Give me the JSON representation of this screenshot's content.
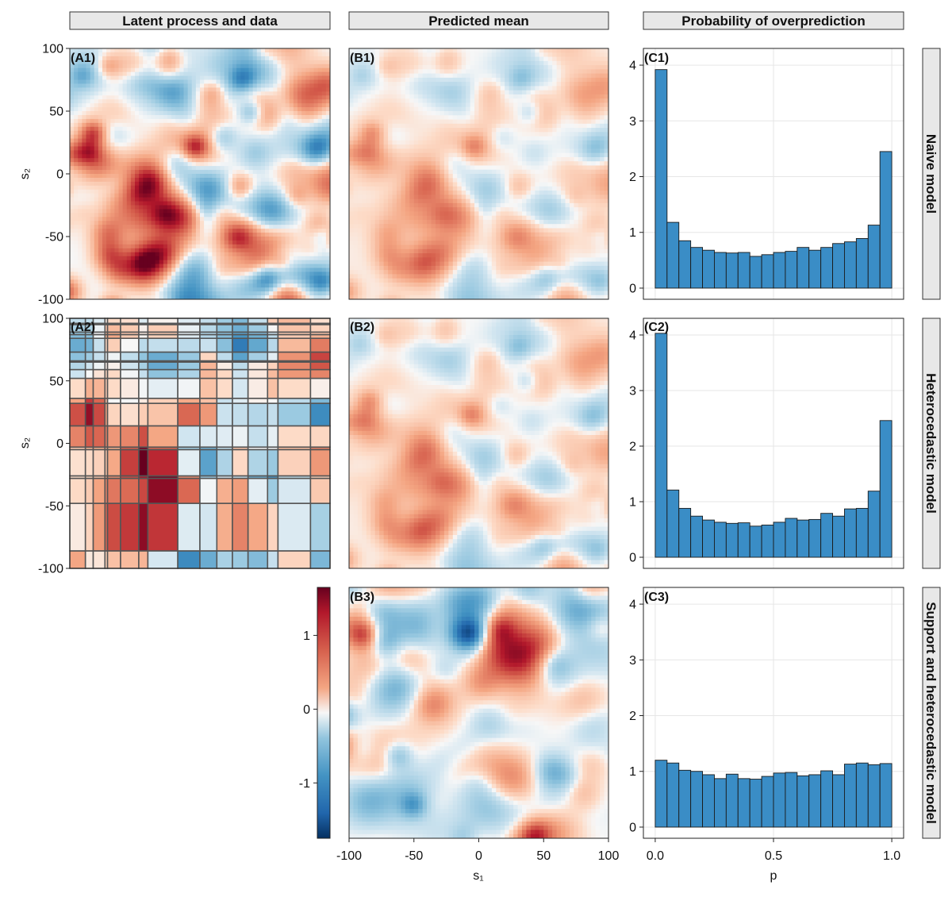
{
  "columns": [
    {
      "key": "A",
      "title": "Latent process and data"
    },
    {
      "key": "B",
      "title": "Predicted mean"
    },
    {
      "key": "C",
      "title": "Probability of overprediction"
    }
  ],
  "rows": [
    {
      "key": "1",
      "title": "Naive model"
    },
    {
      "key": "2",
      "title": "Heterocedastic model"
    },
    {
      "key": "3",
      "title": "Support and heterocedastic model"
    }
  ],
  "panel_labels": [
    "(A1)",
    "(B1)",
    "(C1)",
    "(A2)",
    "(B2)",
    "(C2)",
    "(B3)",
    "(C3)"
  ],
  "axes": {
    "s1_label": "s₁",
    "s2_label": "s₂",
    "p_label": "p",
    "s_ticks": [
      "-100",
      "-50",
      "0",
      "50",
      "100"
    ],
    "s_tick_values": [
      -100,
      -50,
      0,
      50,
      100
    ],
    "hist_y_ticks": [
      "0",
      "1",
      "2",
      "3",
      "4"
    ],
    "hist_x_ticks": [
      "0.0",
      "0.5",
      "1.0"
    ],
    "colorbar_ticks": [
      "1",
      "0",
      "-1"
    ]
  },
  "colors": {
    "bar_fill": "#3a8dc6",
    "bar_stroke": "#1a1a1a",
    "cmap_low": "#053061",
    "cmap_mid": "#f7f7f7",
    "cmap_high": "#67001f",
    "strip_fill": "#e8e8e8"
  },
  "chart_data": [
    {
      "type": "heatmap",
      "id": "A1",
      "title": "Latent process and data",
      "xlim": [
        -100,
        100
      ],
      "ylim": [
        -100,
        100
      ],
      "ylabel": "s₂",
      "description_values": "smooth random field, range approx -1.7 to 1.6"
    },
    {
      "type": "heatmap",
      "id": "A2",
      "xlim": [
        -100,
        100
      ],
      "ylim": [
        -100,
        100
      ],
      "ylabel": "s₂",
      "x_breaks": [
        -100,
        -88,
        -82,
        -73,
        -71,
        -61,
        -47,
        -40,
        -17,
        0,
        13,
        25,
        37,
        52,
        60,
        85,
        100
      ],
      "y_breaks": [
        -100,
        -86,
        -48,
        -28,
        -26,
        -5,
        -3,
        14,
        32,
        36,
        52,
        59,
        65,
        66,
        73,
        84,
        87,
        89,
        95,
        96,
        100
      ],
      "description_values": "areal (block-averaged) data on irregular rectangular support"
    },
    {
      "type": "heatmap",
      "id": "B1",
      "title": "Predicted mean",
      "xlim": [
        -100,
        100
      ],
      "ylim": [
        -100,
        100
      ]
    },
    {
      "type": "heatmap",
      "id": "B2",
      "xlim": [
        -100,
        100
      ],
      "ylim": [
        -100,
        100
      ]
    },
    {
      "type": "heatmap",
      "id": "B3",
      "xlim": [
        -100,
        100
      ],
      "ylim": [
        -100,
        100
      ],
      "xlabel": "s₁"
    },
    {
      "type": "bar",
      "id": "C1",
      "title": "Probability of overprediction",
      "row": "Naive model",
      "bin_edges": [
        0,
        0.05,
        0.1,
        0.15,
        0.2,
        0.25,
        0.3,
        0.35,
        0.4,
        0.45,
        0.5,
        0.55,
        0.6,
        0.65,
        0.7,
        0.75,
        0.8,
        0.85,
        0.9,
        0.95,
        1.0
      ],
      "values": [
        3.92,
        1.18,
        0.85,
        0.73,
        0.68,
        0.64,
        0.63,
        0.64,
        0.57,
        0.6,
        0.64,
        0.66,
        0.73,
        0.68,
        0.73,
        0.8,
        0.83,
        0.89,
        1.13,
        2.45
      ],
      "xlim": [
        -0.05,
        1.05
      ],
      "ylim": [
        -0.2,
        4.3
      ]
    },
    {
      "type": "bar",
      "id": "C2",
      "row": "Heterocedastic model",
      "bin_edges": [
        0,
        0.05,
        0.1,
        0.15,
        0.2,
        0.25,
        0.3,
        0.35,
        0.4,
        0.45,
        0.5,
        0.55,
        0.6,
        0.65,
        0.7,
        0.75,
        0.8,
        0.85,
        0.9,
        0.95,
        1.0
      ],
      "values": [
        4.03,
        1.21,
        0.88,
        0.74,
        0.67,
        0.63,
        0.61,
        0.62,
        0.56,
        0.58,
        0.63,
        0.7,
        0.67,
        0.68,
        0.79,
        0.74,
        0.87,
        0.88,
        1.19,
        2.46
      ],
      "xlim": [
        -0.05,
        1.05
      ],
      "ylim": [
        -0.2,
        4.3
      ]
    },
    {
      "type": "bar",
      "id": "C3",
      "row": "Support and heterocedastic model",
      "xlabel": "p",
      "bin_edges": [
        0,
        0.05,
        0.1,
        0.15,
        0.2,
        0.25,
        0.3,
        0.35,
        0.4,
        0.45,
        0.5,
        0.55,
        0.6,
        0.65,
        0.7,
        0.75,
        0.8,
        0.85,
        0.9,
        0.95,
        1.0
      ],
      "values": [
        1.2,
        1.15,
        1.02,
        1.0,
        0.94,
        0.87,
        0.95,
        0.87,
        0.86,
        0.91,
        0.97,
        0.98,
        0.92,
        0.94,
        1.01,
        0.94,
        1.13,
        1.15,
        1.12,
        1.14
      ],
      "xlim": [
        -0.05,
        1.05
      ],
      "ylim": [
        -0.2,
        4.3
      ]
    },
    {
      "type": "colorbar",
      "id": "colorbar",
      "range": [
        -1.75,
        1.65
      ],
      "ticks": [
        1,
        0,
        -1
      ]
    }
  ]
}
